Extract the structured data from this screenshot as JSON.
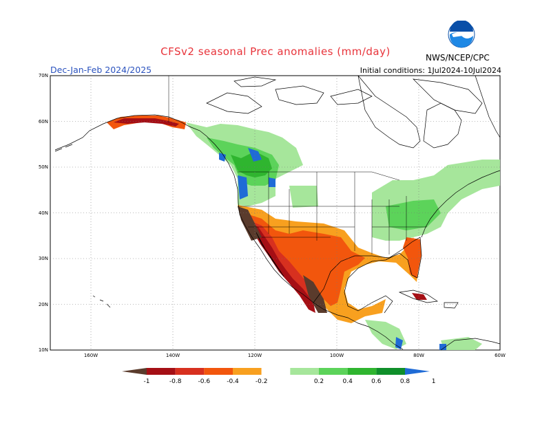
{
  "header": {
    "title": "CFSv2 seasonal Prec anomalies (mm/day)",
    "season": "Dec-Jan-Feb 2024/2025",
    "initial_conditions": "Initial conditions: 1Jul2024-10Jul2024",
    "agency": "NWS/NCEP/CPC",
    "logo_text": "NOAA"
  },
  "map": {
    "lat_labels": [
      "70N",
      "60N",
      "50N",
      "40N",
      "30N",
      "20N",
      "10N"
    ],
    "lon_labels": [
      "160W",
      "140W",
      "120W",
      "100W",
      "80W",
      "60W"
    ],
    "grid": "dotted"
  },
  "colorbar": {
    "labels": [
      "-1",
      "-0.8",
      "-0.6",
      "-0.4",
      "-0.2",
      "0.2",
      "0.4",
      "0.6",
      "0.8",
      "1"
    ],
    "colors": [
      "#5a3b2c",
      "#a50f15",
      "#d7301f",
      "#f2560d",
      "#f8a01f",
      "#ffffff",
      "#a6e69b",
      "#5cd35a",
      "#2fb52f",
      "#0f8f2a",
      "#1f6bd6"
    ]
  },
  "colors": {
    "title": "#e8333a",
    "season": "#2a52be"
  }
}
